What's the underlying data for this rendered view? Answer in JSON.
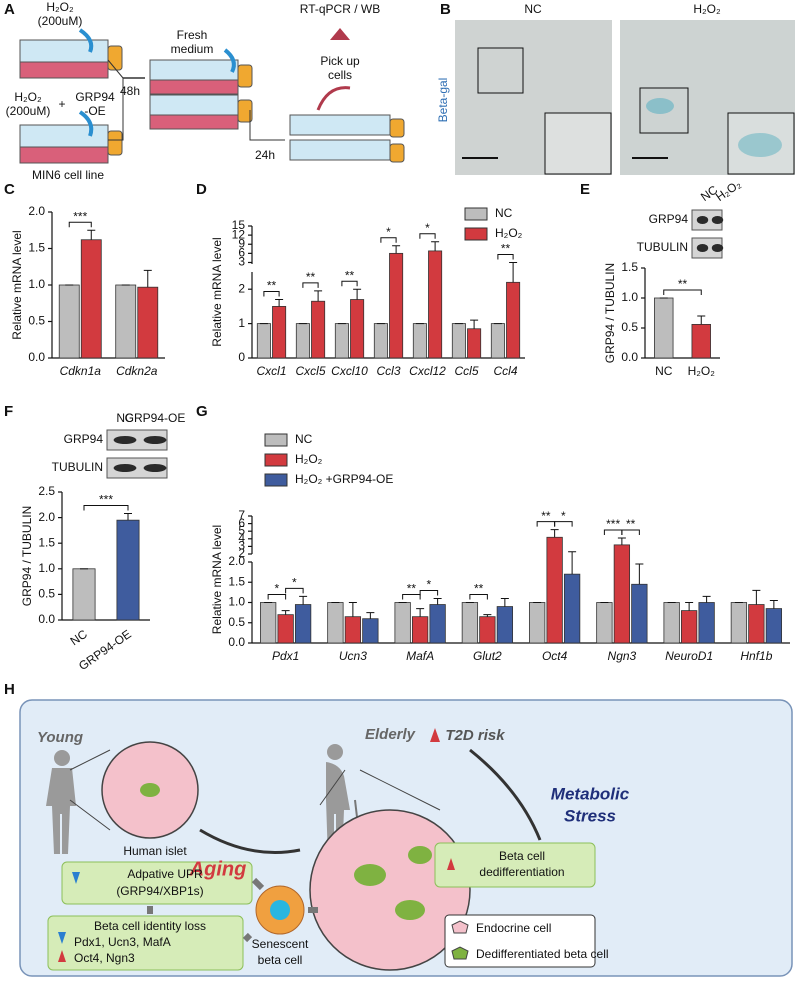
{
  "panel_labels": [
    "A",
    "B",
    "C",
    "D",
    "E",
    "F",
    "G",
    "H"
  ],
  "panel_a": {
    "h2o2": "H₂O₂",
    "conc": "(200uM)",
    "h2o2_2": "H₂O₂",
    "conc_2": "(200uM)",
    "plus": "+",
    "grp94": "GRP94",
    "oe": "-OE",
    "t48": "48h",
    "fresh": [
      "Fresh",
      "medium"
    ],
    "assay": "RT-qPCR / WB",
    "pick": [
      "Pick up",
      "cells"
    ],
    "t24": "24h",
    "cell_line": "MIN6 cell line"
  },
  "panel_b": {
    "stain": "Beta-gal",
    "conditions": [
      "NC",
      "H₂O₂"
    ]
  },
  "chart_data": [
    {
      "type": "bar",
      "ylabel": "Relative mRNA level",
      "categories": [
        "Cdkn1a",
        "Cdkn2a"
      ],
      "series": [
        {
          "color": "#bdbdbd",
          "values": [
            1.0,
            1.0
          ],
          "errors": [
            0,
            0
          ]
        },
        {
          "color": "#d23a3f",
          "values": [
            1.62,
            0.97
          ],
          "errors": [
            0.13,
            0.23
          ]
        }
      ],
      "ylim": [
        0,
        2
      ],
      "yticks": [
        {
          "value": 0,
          "label": "0.0"
        },
        {
          "value": 0.5,
          "label": "0.5"
        },
        {
          "value": 1,
          "label": "1.0"
        },
        {
          "value": 1.5,
          "label": "1.5"
        },
        {
          "value": 2,
          "label": "2.0"
        }
      ],
      "significance": [
        "***",
        null
      ]
    },
    {
      "type": "bar",
      "ylabel": "Relative mRNA level",
      "categories": [
        "Cxcl1",
        "Cxcl5",
        "Cxcl10",
        "Ccl3",
        "Cxcl12",
        "Ccl5",
        "Ccl4"
      ],
      "series": [
        {
          "name": "NC",
          "color": "#bdbdbd",
          "values": [
            1,
            1,
            1,
            1,
            1,
            1,
            1
          ],
          "errors": [
            0,
            0,
            0,
            0,
            0,
            0,
            0
          ]
        },
        {
          "name": "H₂O₂",
          "color": "#d23a3f",
          "values": [
            1.5,
            1.65,
            1.7,
            6,
            6.8,
            0.85,
            2.2
          ],
          "errors": [
            0.2,
            0.3,
            0.3,
            2.5,
            3,
            0.25,
            0.8
          ]
        }
      ],
      "segments": [
        {
          "ylim": [
            0,
            2.5
          ],
          "yticks": [
            0,
            1,
            2
          ]
        },
        {
          "ylim": [
            2.5,
            15
          ],
          "yticks": [
            3,
            6,
            9,
            12,
            15
          ]
        }
      ],
      "significance": [
        "**",
        "**",
        "**",
        "*",
        "*",
        null,
        "**"
      ]
    },
    {
      "type": "bar",
      "ylabel": "GRP94 / TUBULIN",
      "categories": [
        "NC",
        "H₂O₂"
      ],
      "series": [
        {
          "colors": [
            "#bdbdbd",
            "#d23a3f"
          ],
          "values": [
            1.0,
            0.56
          ],
          "errors": [
            0,
            0.14
          ]
        }
      ],
      "ylim": [
        0,
        1.5
      ],
      "yticks": [
        {
          "value": 0,
          "label": "0.0"
        },
        {
          "value": 0.5,
          "label": "0.5"
        },
        {
          "value": 1,
          "label": "1.0"
        },
        {
          "value": 1.5,
          "label": "1.5"
        }
      ],
      "significance": "**",
      "blot": {
        "rows": [
          "GRP94",
          "TUBULIN"
        ],
        "lanes": [
          "NC",
          "H₂O₂"
        ]
      }
    },
    {
      "type": "bar",
      "ylabel": "GRP94 / TUBULIN",
      "categories": [
        "NC",
        "GRP94-OE"
      ],
      "series": [
        {
          "colors": [
            "#bdbdbd",
            "#3f5c9e"
          ],
          "values": [
            1.0,
            1.95
          ],
          "errors": [
            0,
            0.13
          ]
        }
      ],
      "ylim": [
        0,
        2.5
      ],
      "yticks": [
        {
          "value": 0,
          "label": "0.0"
        },
        {
          "value": 0.5,
          "label": "0.5"
        },
        {
          "value": 1,
          "label": "1.0"
        },
        {
          "value": 1.5,
          "label": "1.5"
        },
        {
          "value": 2,
          "label": "2.0"
        },
        {
          "value": 2.5,
          "label": "2.5"
        }
      ],
      "significance": "***",
      "blot": {
        "rows": [
          "GRP94",
          "TUBULIN"
        ],
        "lanes": [
          "NC",
          "GRP94-OE"
        ]
      }
    },
    {
      "type": "bar",
      "ylabel": "Relative mRNA level",
      "categories": [
        "Pdx1",
        "Ucn3",
        "MafA",
        "Glut2",
        "Oct4",
        "Ngn3",
        "NeuroD1",
        "Hnf1b"
      ],
      "series": [
        {
          "name": "NC",
          "color": "#bdbdbd",
          "values": [
            1,
            1,
            1,
            1,
            1,
            1,
            1,
            1
          ],
          "errors": [
            0,
            0,
            0,
            0,
            0,
            0,
            0,
            0
          ]
        },
        {
          "name": "H₂O₂",
          "color": "#d23a3f",
          "values": [
            0.7,
            0.65,
            0.65,
            0.65,
            4.2,
            3.2,
            0.8,
            0.95
          ],
          "errors": [
            0.1,
            0.35,
            0.2,
            0.05,
            1.0,
            0.9,
            0.2,
            0.35
          ]
        },
        {
          "name": "H₂O₂ +GRP94-OE",
          "color": "#3f5c9e",
          "values": [
            0.95,
            0.6,
            0.95,
            0.9,
            1.7,
            1.45,
            1.0,
            0.85
          ],
          "errors": [
            0.2,
            0.15,
            0.15,
            0.2,
            0.6,
            0.5,
            0.15,
            0.2
          ]
        }
      ],
      "segments": [
        {
          "ylim": [
            0,
            2
          ],
          "yticks": [
            {
              "value": 0,
              "label": "0.0"
            },
            {
              "value": 0.5,
              "label": "0.5"
            },
            {
              "value": 1,
              "label": "1.0"
            },
            {
              "value": 1.5,
              "label": "1.5"
            },
            {
              "value": 2,
              "label": "2.0"
            }
          ]
        },
        {
          "ylim": [
            2,
            7
          ],
          "yticks": [
            2,
            3,
            4,
            5,
            6,
            7
          ]
        }
      ],
      "significance": [
        [
          "*",
          "*"
        ],
        [
          null,
          null
        ],
        [
          "**",
          "*"
        ],
        [
          "**",
          null
        ],
        [
          "**",
          "*"
        ],
        [
          "***",
          "**"
        ],
        [
          null,
          null
        ],
        [
          null,
          null
        ]
      ]
    }
  ],
  "panel_h": {
    "young": "Young",
    "elderly": "Elderly",
    "risk": "T2D risk",
    "islet": "Human islet",
    "aging": "Aging",
    "stress": [
      "Metabolic",
      "Stress"
    ],
    "dediff": [
      "Beta cell",
      "dedifferentiation"
    ],
    "upr": [
      "Adpative UPR",
      "(GRP94/XBP1s)"
    ],
    "identity": [
      "Beta cell identity loss",
      "Pdx1, Ucn3, MafA",
      "Oct4, Ngn3"
    ],
    "senescent": [
      "Senescent",
      "beta cell"
    ],
    "legend": [
      "Endocrine cell",
      "Dedifferentiated beta cell"
    ]
  }
}
